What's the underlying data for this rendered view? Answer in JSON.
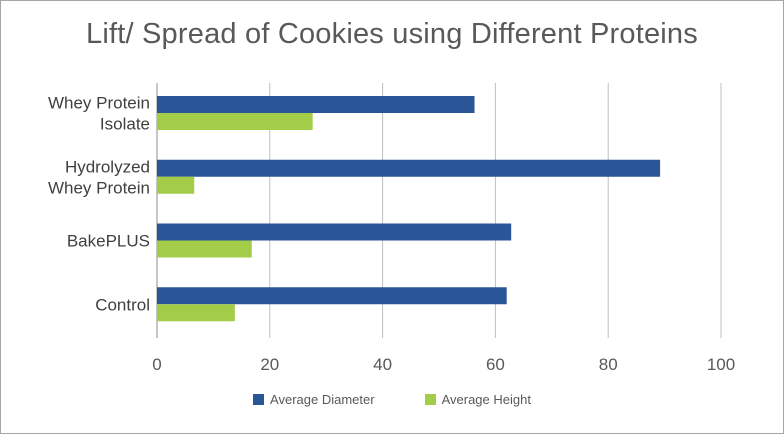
{
  "chart_data": {
    "type": "bar",
    "orientation": "horizontal",
    "title": "Lift/ Spread of Cookies using Different Proteins",
    "categories": [
      [
        "Whey Protein",
        "Isolate"
      ],
      [
        "Hydrolyzed",
        "Whey Protein"
      ],
      [
        "BakePLUS"
      ],
      [
        "Control"
      ]
    ],
    "series": [
      {
        "name": "Average Diameter",
        "color": "#2a5597",
        "values": [
          56.3,
          89.2,
          62.8,
          62.0
        ]
      },
      {
        "name": "Average Height",
        "color": "#a3cd49",
        "values": [
          27.6,
          6.6,
          16.8,
          13.8
        ]
      }
    ],
    "xlim": [
      0,
      100
    ],
    "xticks": [
      0,
      20,
      40,
      60,
      80,
      100
    ],
    "grid": "vertical",
    "legend_position": "bottom"
  }
}
